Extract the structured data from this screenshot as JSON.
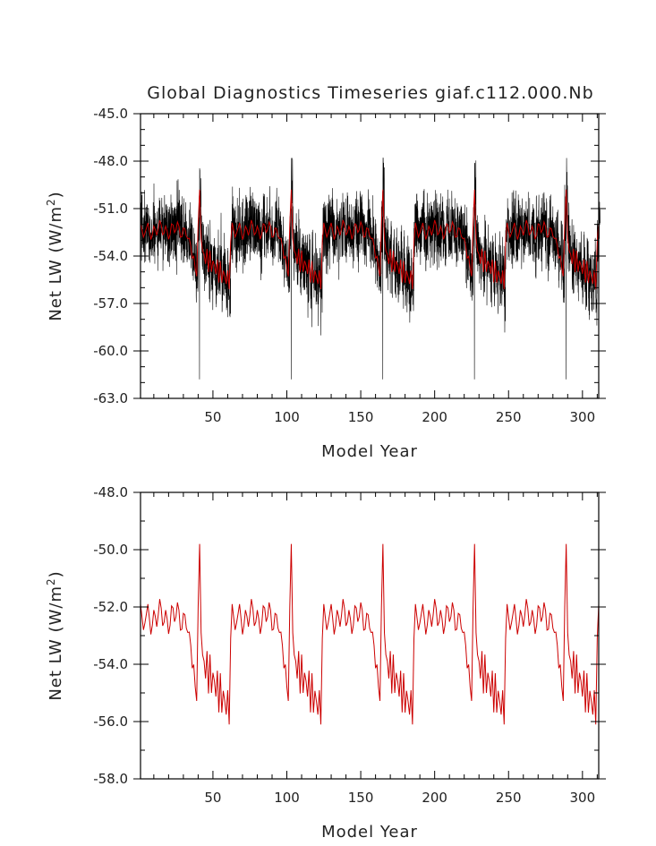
{
  "title": "Global Diagnostics Timeseries giaf.c112.000.Nb",
  "chart_data": [
    {
      "type": "line",
      "xlabel": "Model Year",
      "ylabel": "Net LW (W/m",
      "ylabel_sup": "2",
      "ylabel_close": ")",
      "xlim": [
        1,
        311
      ],
      "ylim": [
        -63.0,
        -45.0
      ],
      "yticks": [
        "-45.0",
        "-48.0",
        "-51.0",
        "-54.0",
        "-57.0",
        "-60.0",
        "-63.0"
      ],
      "xticks": [
        "50",
        "100",
        "150",
        "200",
        "250",
        "300"
      ],
      "series": [
        {
          "role": "monthly",
          "color": "#000000"
        },
        {
          "role": "annual",
          "color": "#cc0000"
        }
      ],
      "cycle": {
        "length_years": 62,
        "start_years": [
          1,
          63,
          125,
          187,
          249
        ],
        "annual_plateau": -52.2,
        "annual_peak": -49.8,
        "annual_peak_offset": 40,
        "annual_minimum": -56.1,
        "annual_minimum_offset": 60,
        "monthly_maximum": -47.8,
        "monthly_minimum": -61.8
      }
    },
    {
      "type": "line",
      "xlabel": "Model Year",
      "ylabel": "Net LW (W/m",
      "ylabel_sup": "2",
      "ylabel_close": ")",
      "xlim": [
        1,
        311
      ],
      "ylim": [
        -58.0,
        -48.0
      ],
      "yticks": [
        "-48.0",
        "-50.0",
        "-52.0",
        "-54.0",
        "-56.0",
        "-58.0"
      ],
      "xticks": [
        "50",
        "100",
        "150",
        "200",
        "250",
        "300"
      ],
      "series": [
        {
          "role": "annual",
          "color": "#cc0000"
        }
      ],
      "cycle": {
        "length_years": 62,
        "start_years": [
          1,
          63,
          125,
          187,
          249
        ],
        "annual_plateau": -52.2,
        "annual_peak": -49.8,
        "annual_peak_offset": 40,
        "annual_minimum": -56.1,
        "annual_minimum_offset": 60
      }
    }
  ]
}
